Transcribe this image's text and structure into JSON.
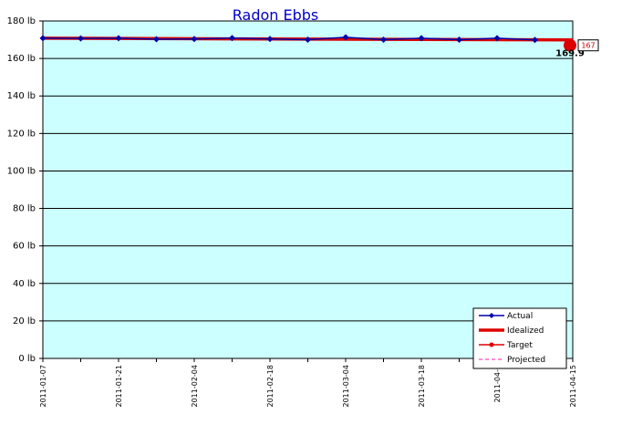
{
  "chart_data": {
    "type": "line",
    "title": "Radon Ebbs",
    "x_tick_labels": [
      "2011-01-07",
      "2011-01-21",
      "2011-02-04",
      "2011-02-18",
      "2011-03-04",
      "2011-03-18",
      "2011-04-0",
      "2011-04-15"
    ],
    "y_tick_labels": [
      "0 lb",
      "20 lb",
      "40 lb",
      "60 lb",
      "80 lb",
      "100 lb",
      "120 lb",
      "140 lb",
      "160 lb",
      "180 lb"
    ],
    "ylim": [
      0,
      180
    ],
    "xlim": [
      "2011-01-07",
      "2011-04-15"
    ],
    "grid": true,
    "legend_position": "bottom-right",
    "series": [
      {
        "name": "Actual",
        "color": "#0000aa",
        "x": [
          "2011-01-07",
          "2011-01-14",
          "2011-01-21",
          "2011-01-28",
          "2011-02-04",
          "2011-02-11",
          "2011-02-18",
          "2011-02-25",
          "2011-03-04",
          "2011-03-11",
          "2011-03-18",
          "2011-03-25",
          "2011-04-01",
          "2011-04-08"
        ],
        "values": [
          170.8,
          170.7,
          170.8,
          170.3,
          170.4,
          170.9,
          170.4,
          170.0,
          171.3,
          170.0,
          170.8,
          170.0,
          170.8,
          169.9
        ]
      },
      {
        "name": "Idealized",
        "color": "#dd0000",
        "x": [
          "2011-01-07",
          "2011-04-15"
        ],
        "values": [
          170.8,
          169.9
        ]
      },
      {
        "name": "Target",
        "color": "#dd0000",
        "x": [
          "2011-04-15"
        ],
        "values": [
          167
        ]
      },
      {
        "name": "Projected",
        "color": "#ff66cc",
        "x": [],
        "values": []
      }
    ],
    "annotations": {
      "end_value": "169.9",
      "target_value": "167"
    }
  }
}
